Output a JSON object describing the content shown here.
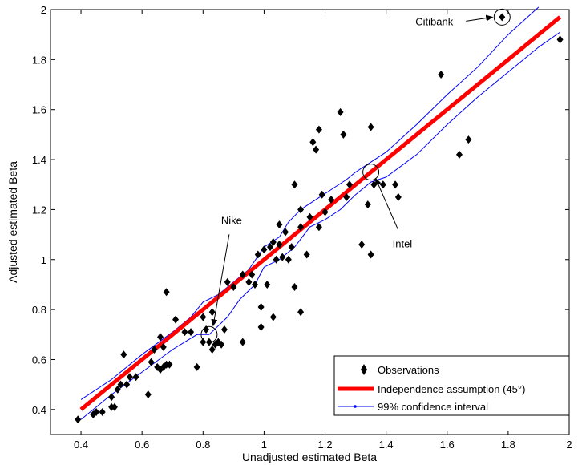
{
  "chart_data": {
    "type": "scatter",
    "xlabel": "Unadjusted estimated Beta",
    "ylabel": "Adjusted estimated Beta",
    "xlim": [
      0.3,
      2.0
    ],
    "ylim": [
      0.3,
      2.0
    ],
    "x_ticks": [
      0.4,
      0.6,
      0.8,
      1.0,
      1.2,
      1.4,
      1.6,
      1.8,
      2.0
    ],
    "y_ticks": [
      0.4,
      0.6,
      0.8,
      1.0,
      1.2,
      1.4,
      1.6,
      1.8,
      2.0
    ],
    "x_tick_labels": [
      "0.4",
      "0.6",
      "0.8",
      "1",
      "1.2",
      "1.4",
      "1.6",
      "1.8",
      "2"
    ],
    "y_tick_labels": [
      "0.4",
      "0.6",
      "0.8",
      "1",
      "1.2",
      "1.4",
      "1.6",
      "1.8",
      "2"
    ],
    "grid": false,
    "legend_position": "bottom-right",
    "series": [
      {
        "name": "Observations",
        "marker": "diamond",
        "color": "#000000",
        "points": [
          [
            0.39,
            0.36
          ],
          [
            0.44,
            0.38
          ],
          [
            0.45,
            0.39
          ],
          [
            0.47,
            0.39
          ],
          [
            0.5,
            0.41
          ],
          [
            0.5,
            0.45
          ],
          [
            0.51,
            0.41
          ],
          [
            0.52,
            0.48
          ],
          [
            0.53,
            0.5
          ],
          [
            0.54,
            0.62
          ],
          [
            0.55,
            0.5
          ],
          [
            0.56,
            0.53
          ],
          [
            0.58,
            0.53
          ],
          [
            0.62,
            0.46
          ],
          [
            0.63,
            0.59
          ],
          [
            0.64,
            0.64
          ],
          [
            0.65,
            0.57
          ],
          [
            0.66,
            0.69
          ],
          [
            0.66,
            0.56
          ],
          [
            0.67,
            0.65
          ],
          [
            0.67,
            0.57
          ],
          [
            0.68,
            0.58
          ],
          [
            0.68,
            0.87
          ],
          [
            0.69,
            0.58
          ],
          [
            0.71,
            0.76
          ],
          [
            0.74,
            0.71
          ],
          [
            0.76,
            0.71
          ],
          [
            0.78,
            0.57
          ],
          [
            0.8,
            0.77
          ],
          [
            0.8,
            0.67
          ],
          [
            0.81,
            0.72
          ],
          [
            0.82,
            0.67
          ],
          [
            0.83,
            0.64
          ],
          [
            0.83,
            0.79
          ],
          [
            0.84,
            0.66
          ],
          [
            0.85,
            0.67
          ],
          [
            0.86,
            0.66
          ],
          [
            0.87,
            0.72
          ],
          [
            0.88,
            0.91
          ],
          [
            0.9,
            0.89
          ],
          [
            0.93,
            0.94
          ],
          [
            0.93,
            0.67
          ],
          [
            0.95,
            0.91
          ],
          [
            0.96,
            0.94
          ],
          [
            0.97,
            0.9
          ],
          [
            0.98,
            1.02
          ],
          [
            0.99,
            0.81
          ],
          [
            0.99,
            0.73
          ],
          [
            1.0,
            1.04
          ],
          [
            1.01,
            0.9
          ],
          [
            1.02,
            1.05
          ],
          [
            1.03,
            1.07
          ],
          [
            1.03,
            0.77
          ],
          [
            1.04,
            1.0
          ],
          [
            1.05,
            1.14
          ],
          [
            1.05,
            1.06
          ],
          [
            1.06,
            1.01
          ],
          [
            1.07,
            1.11
          ],
          [
            1.08,
            1.0
          ],
          [
            1.09,
            1.05
          ],
          [
            1.1,
            1.3
          ],
          [
            1.1,
            0.89
          ],
          [
            1.12,
            1.13
          ],
          [
            1.12,
            0.79
          ],
          [
            1.12,
            1.2
          ],
          [
            1.14,
            1.02
          ],
          [
            1.15,
            1.17
          ],
          [
            1.16,
            1.47
          ],
          [
            1.17,
            1.44
          ],
          [
            1.18,
            1.52
          ],
          [
            1.18,
            1.13
          ],
          [
            1.19,
            1.26
          ],
          [
            1.2,
            1.19
          ],
          [
            1.22,
            1.24
          ],
          [
            1.25,
            1.59
          ],
          [
            1.26,
            1.5
          ],
          [
            1.27,
            1.25
          ],
          [
            1.28,
            1.3
          ],
          [
            1.32,
            1.06
          ],
          [
            1.34,
            1.22
          ],
          [
            1.35,
            1.02
          ],
          [
            1.35,
            1.53
          ],
          [
            1.36,
            1.3
          ],
          [
            1.39,
            1.3
          ],
          [
            1.43,
            1.3
          ],
          [
            1.44,
            1.25
          ],
          [
            1.58,
            1.74
          ],
          [
            1.64,
            1.42
          ],
          [
            1.67,
            1.48
          ],
          [
            1.78,
            1.97
          ],
          [
            1.97,
            1.88
          ]
        ]
      },
      {
        "name": "Independence assumption (45°)",
        "color": "#ff0000",
        "line": [
          [
            0.4,
            0.4
          ],
          [
            1.97,
            1.97
          ]
        ]
      },
      {
        "name": "99% confidence interval",
        "color": "#0000ff",
        "upper": [
          [
            0.4,
            0.44
          ],
          [
            0.5,
            0.52
          ],
          [
            0.6,
            0.62
          ],
          [
            0.7,
            0.71
          ],
          [
            0.76,
            0.77
          ],
          [
            0.8,
            0.83
          ],
          [
            0.85,
            0.86
          ],
          [
            0.9,
            0.91
          ],
          [
            0.95,
            0.96
          ],
          [
            1.0,
            1.05
          ],
          [
            1.05,
            1.09
          ],
          [
            1.08,
            1.15
          ],
          [
            1.12,
            1.2
          ],
          [
            1.17,
            1.24
          ],
          [
            1.22,
            1.28
          ],
          [
            1.27,
            1.32
          ],
          [
            1.3,
            1.35
          ],
          [
            1.35,
            1.39
          ],
          [
            1.4,
            1.43
          ],
          [
            1.5,
            1.54
          ],
          [
            1.6,
            1.66
          ],
          [
            1.7,
            1.77
          ],
          [
            1.8,
            1.9
          ],
          [
            1.9,
            2.01
          ]
        ],
        "lower": [
          [
            0.4,
            0.36
          ],
          [
            0.5,
            0.46
          ],
          [
            0.6,
            0.55
          ],
          [
            0.7,
            0.64
          ],
          [
            0.78,
            0.7
          ],
          [
            0.82,
            0.7
          ],
          [
            0.88,
            0.77
          ],
          [
            0.92,
            0.84
          ],
          [
            0.97,
            0.9
          ],
          [
            1.0,
            0.97
          ],
          [
            1.05,
            1.0
          ],
          [
            1.1,
            1.05
          ],
          [
            1.15,
            1.13
          ],
          [
            1.2,
            1.16
          ],
          [
            1.25,
            1.2
          ],
          [
            1.3,
            1.26
          ],
          [
            1.35,
            1.31
          ],
          [
            1.4,
            1.33
          ],
          [
            1.5,
            1.42
          ],
          [
            1.6,
            1.54
          ],
          [
            1.7,
            1.65
          ],
          [
            1.8,
            1.75
          ],
          [
            1.9,
            1.85
          ],
          [
            1.97,
            1.91
          ]
        ]
      }
    ],
    "annotations": [
      {
        "text": "Citibank",
        "target": [
          1.78,
          1.97
        ]
      },
      {
        "text": "Intel",
        "target": [
          1.35,
          1.35
        ]
      },
      {
        "text": "Nike",
        "target": [
          0.82,
          0.7
        ]
      }
    ]
  }
}
